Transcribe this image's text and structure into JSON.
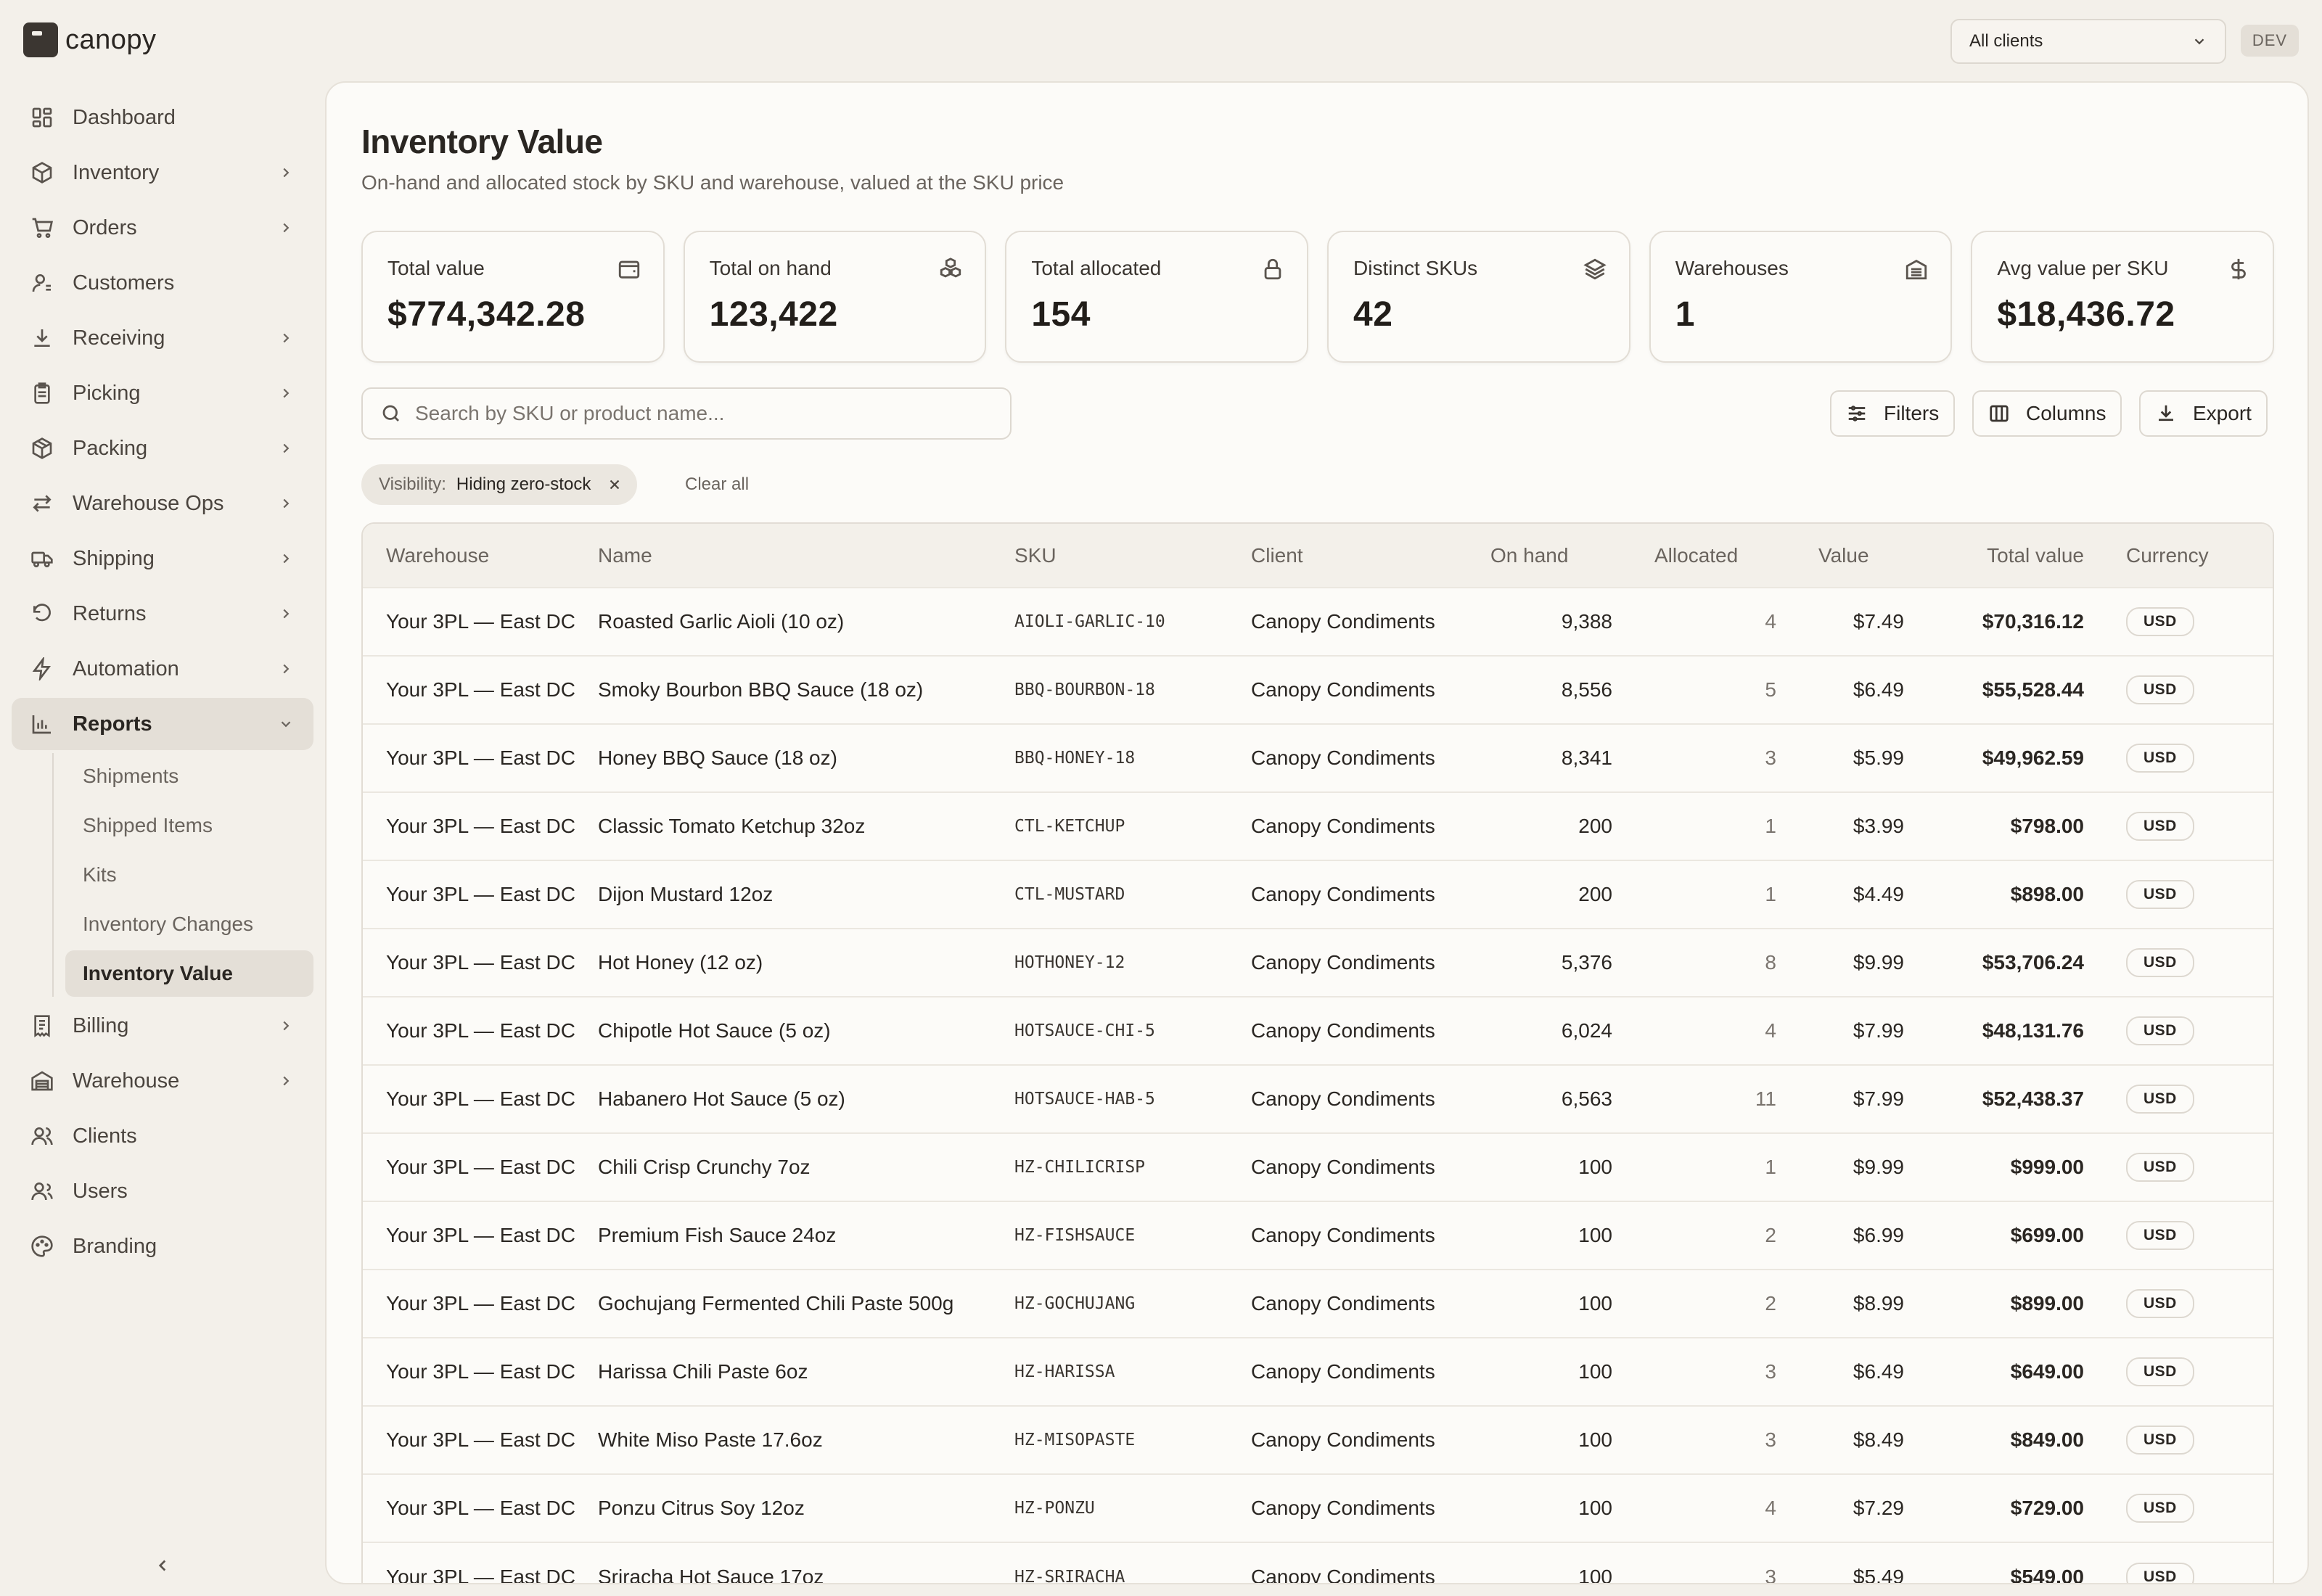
{
  "brand": {
    "name": "canopy"
  },
  "topbar": {
    "client_select": "All clients",
    "env_badge": "DEV"
  },
  "sidebar": {
    "items": [
      {
        "key": "dashboard",
        "label": "Dashboard",
        "icon": "dashboard-icon",
        "chevron": false
      },
      {
        "key": "inventory",
        "label": "Inventory",
        "icon": "box-icon",
        "chevron": true
      },
      {
        "key": "orders",
        "label": "Orders",
        "icon": "cart-icon",
        "chevron": true
      },
      {
        "key": "customers",
        "label": "Customers",
        "icon": "customer-icon",
        "chevron": false
      },
      {
        "key": "receiving",
        "label": "Receiving",
        "icon": "download-icon",
        "chevron": true
      },
      {
        "key": "picking",
        "label": "Picking",
        "icon": "clipboard-icon",
        "chevron": true
      },
      {
        "key": "packing",
        "label": "Packing",
        "icon": "package-icon",
        "chevron": true
      },
      {
        "key": "warehouse-ops",
        "label": "Warehouse Ops",
        "icon": "arrows-icon",
        "chevron": true
      },
      {
        "key": "shipping",
        "label": "Shipping",
        "icon": "truck-icon",
        "chevron": true
      },
      {
        "key": "returns",
        "label": "Returns",
        "icon": "return-icon",
        "chevron": true
      },
      {
        "key": "automation",
        "label": "Automation",
        "icon": "bolt-icon",
        "chevron": true
      },
      {
        "key": "reports",
        "label": "Reports",
        "icon": "chart-icon",
        "chevron": true,
        "expanded": true
      }
    ],
    "reports_sub": [
      {
        "label": "Shipments"
      },
      {
        "label": "Shipped Items"
      },
      {
        "label": "Kits"
      },
      {
        "label": "Inventory Changes"
      },
      {
        "label": "Inventory Value",
        "active": true
      }
    ],
    "items_after": [
      {
        "key": "billing",
        "label": "Billing",
        "icon": "receipt-icon",
        "chevron": true
      },
      {
        "key": "warehouse",
        "label": "Warehouse",
        "icon": "warehouse-icon",
        "chevron": true
      },
      {
        "key": "clients",
        "label": "Clients",
        "icon": "clients-icon",
        "chevron": false
      },
      {
        "key": "users",
        "label": "Users",
        "icon": "users-icon",
        "chevron": false
      },
      {
        "key": "branding",
        "label": "Branding",
        "icon": "palette-icon",
        "chevron": false
      }
    ]
  },
  "page": {
    "title": "Inventory Value",
    "subtitle": "On-hand and allocated stock by SKU and warehouse, valued at the SKU price"
  },
  "stats": [
    {
      "label": "Total value",
      "value": "$774,342.28",
      "icon": "wallet-icon"
    },
    {
      "label": "Total on hand",
      "value": "123,422",
      "icon": "boxes-icon"
    },
    {
      "label": "Total allocated",
      "value": "154",
      "icon": "lock-icon"
    },
    {
      "label": "Distinct SKUs",
      "value": "42",
      "icon": "layers-icon"
    },
    {
      "label": "Warehouses",
      "value": "1",
      "icon": "building-icon"
    },
    {
      "label": "Avg value per SKU",
      "value": "$18,436.72",
      "icon": "dollar-icon"
    }
  ],
  "search": {
    "placeholder": "Search by SKU or product name...",
    "value": ""
  },
  "toolbar": {
    "filters_label": "Filters",
    "columns_label": "Columns",
    "export_label": "Export"
  },
  "active_filter": {
    "key": "Visibility:",
    "value": "Hiding zero-stock",
    "clear_label": "Clear all"
  },
  "table": {
    "columns": [
      "Warehouse",
      "Name",
      "SKU",
      "Client",
      "On hand",
      "Allocated",
      "Value",
      "Total value",
      "Currency"
    ],
    "rows": [
      [
        "Your 3PL — East DC",
        "Roasted Garlic Aioli (10 oz)",
        "AIOLI-GARLIC-10",
        "Canopy Condiments",
        "9,388",
        "4",
        "$7.49",
        "$70,316.12",
        "USD"
      ],
      [
        "Your 3PL — East DC",
        "Smoky Bourbon BBQ Sauce (18 oz)",
        "BBQ-BOURBON-18",
        "Canopy Condiments",
        "8,556",
        "5",
        "$6.49",
        "$55,528.44",
        "USD"
      ],
      [
        "Your 3PL — East DC",
        "Honey BBQ Sauce (18 oz)",
        "BBQ-HONEY-18",
        "Canopy Condiments",
        "8,341",
        "3",
        "$5.99",
        "$49,962.59",
        "USD"
      ],
      [
        "Your 3PL — East DC",
        "Classic Tomato Ketchup 32oz",
        "CTL-KETCHUP",
        "Canopy Condiments",
        "200",
        "1",
        "$3.99",
        "$798.00",
        "USD"
      ],
      [
        "Your 3PL — East DC",
        "Dijon Mustard 12oz",
        "CTL-MUSTARD",
        "Canopy Condiments",
        "200",
        "1",
        "$4.49",
        "$898.00",
        "USD"
      ],
      [
        "Your 3PL — East DC",
        "Hot Honey (12 oz)",
        "HOTHONEY-12",
        "Canopy Condiments",
        "5,376",
        "8",
        "$9.99",
        "$53,706.24",
        "USD"
      ],
      [
        "Your 3PL — East DC",
        "Chipotle Hot Sauce (5 oz)",
        "HOTSAUCE-CHI-5",
        "Canopy Condiments",
        "6,024",
        "4",
        "$7.99",
        "$48,131.76",
        "USD"
      ],
      [
        "Your 3PL — East DC",
        "Habanero Hot Sauce (5 oz)",
        "HOTSAUCE-HAB-5",
        "Canopy Condiments",
        "6,563",
        "11",
        "$7.99",
        "$52,438.37",
        "USD"
      ],
      [
        "Your 3PL — East DC",
        "Chili Crisp Crunchy 7oz",
        "HZ-CHILICRISP",
        "Canopy Condiments",
        "100",
        "1",
        "$9.99",
        "$999.00",
        "USD"
      ],
      [
        "Your 3PL — East DC",
        "Premium Fish Sauce 24oz",
        "HZ-FISHSAUCE",
        "Canopy Condiments",
        "100",
        "2",
        "$6.99",
        "$699.00",
        "USD"
      ],
      [
        "Your 3PL — East DC",
        "Gochujang Fermented Chili Paste 500g",
        "HZ-GOCHUJANG",
        "Canopy Condiments",
        "100",
        "2",
        "$8.99",
        "$899.00",
        "USD"
      ],
      [
        "Your 3PL — East DC",
        "Harissa Chili Paste 6oz",
        "HZ-HARISSA",
        "Canopy Condiments",
        "100",
        "3",
        "$6.49",
        "$649.00",
        "USD"
      ],
      [
        "Your 3PL — East DC",
        "White Miso Paste 17.6oz",
        "HZ-MISOPASTE",
        "Canopy Condiments",
        "100",
        "3",
        "$8.49",
        "$849.00",
        "USD"
      ],
      [
        "Your 3PL — East DC",
        "Ponzu Citrus Soy 12oz",
        "HZ-PONZU",
        "Canopy Condiments",
        "100",
        "4",
        "$7.29",
        "$729.00",
        "USD"
      ],
      [
        "Your 3PL — East DC",
        "Sriracha Hot Sauce 17oz",
        "HZ-SRIRACHA",
        "Canopy Condiments",
        "100",
        "3",
        "$5.49",
        "$549.00",
        "USD"
      ]
    ]
  }
}
